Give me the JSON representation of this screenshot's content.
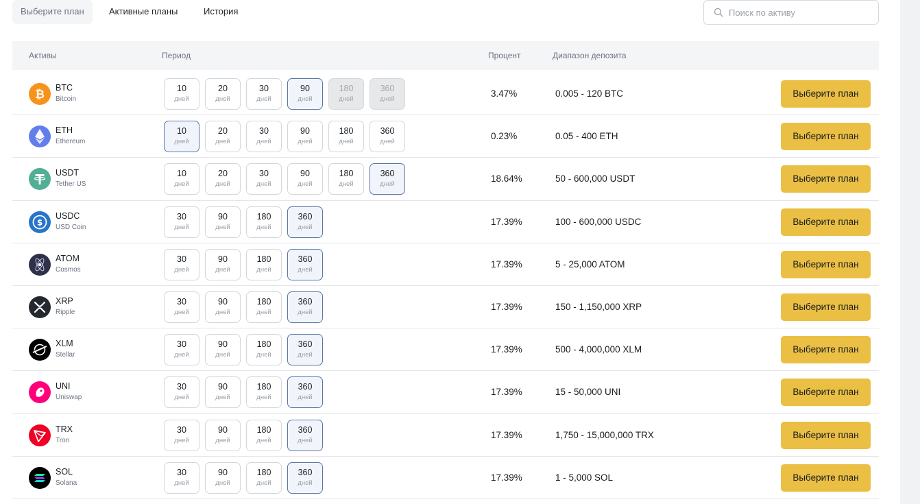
{
  "tabs": [
    {
      "label": "Выберите план",
      "active": true
    },
    {
      "label": "Активные планы",
      "active": false
    },
    {
      "label": "История",
      "active": false
    }
  ],
  "search": {
    "placeholder": "Поиск по активу",
    "value": ""
  },
  "table": {
    "headers": {
      "asset": "Активы",
      "period": "Период",
      "percent": "Процент",
      "range": "Диапазон депозита"
    },
    "unit": "дней",
    "action_label": "Выберите план",
    "rows": [
      {
        "symbol": "BTC",
        "name": "Bitcoin",
        "icon": "bitcoin-icon",
        "color": "#f7931a",
        "periods": [
          {
            "days": "10"
          },
          {
            "days": "20"
          },
          {
            "days": "30"
          },
          {
            "days": "90",
            "selected": true
          },
          {
            "days": "180",
            "disabled": true
          },
          {
            "days": "360",
            "disabled": true
          }
        ],
        "percent": "3.47%",
        "range": "0.005 - 120 BTC"
      },
      {
        "symbol": "ETH",
        "name": "Ethereum",
        "icon": "ethereum-icon",
        "color": "#627eea",
        "periods": [
          {
            "days": "10",
            "selected": true
          },
          {
            "days": "20"
          },
          {
            "days": "30"
          },
          {
            "days": "90"
          },
          {
            "days": "180"
          },
          {
            "days": "360"
          }
        ],
        "percent": "0.23%",
        "range": "0.05 - 400 ETH"
      },
      {
        "symbol": "USDT",
        "name": "Tether US",
        "icon": "tether-icon",
        "color": "#50af95",
        "periods": [
          {
            "days": "10"
          },
          {
            "days": "20"
          },
          {
            "days": "30"
          },
          {
            "days": "90"
          },
          {
            "days": "180"
          },
          {
            "days": "360",
            "selected": true
          }
        ],
        "percent": "18.64%",
        "range": "50 - 600,000 USDT"
      },
      {
        "symbol": "USDC",
        "name": "USD Coin",
        "icon": "usd-coin-icon",
        "color": "#2775ca",
        "periods": [
          {
            "days": "30"
          },
          {
            "days": "90"
          },
          {
            "days": "180"
          },
          {
            "days": "360",
            "selected": true
          }
        ],
        "percent": "17.39%",
        "range": "100 - 600,000 USDC"
      },
      {
        "symbol": "ATOM",
        "name": "Cosmos",
        "icon": "cosmos-icon",
        "color": "#2e3148",
        "periods": [
          {
            "days": "30"
          },
          {
            "days": "90"
          },
          {
            "days": "180"
          },
          {
            "days": "360",
            "selected": true
          }
        ],
        "percent": "17.39%",
        "range": "5 - 25,000 ATOM"
      },
      {
        "symbol": "XRP",
        "name": "Ripple",
        "icon": "ripple-icon",
        "color": "#23292f",
        "periods": [
          {
            "days": "30"
          },
          {
            "days": "90"
          },
          {
            "days": "180"
          },
          {
            "days": "360",
            "selected": true
          }
        ],
        "percent": "17.39%",
        "range": "150 - 1,150,000 XRP"
      },
      {
        "symbol": "XLM",
        "name": "Stellar",
        "icon": "stellar-icon",
        "color": "#000000",
        "periods": [
          {
            "days": "30"
          },
          {
            "days": "90"
          },
          {
            "days": "180"
          },
          {
            "days": "360",
            "selected": true
          }
        ],
        "percent": "17.39%",
        "range": "500 - 4,000,000 XLM"
      },
      {
        "symbol": "UNI",
        "name": "Uniswap",
        "icon": "uniswap-icon",
        "color": "#ff007a",
        "periods": [
          {
            "days": "30"
          },
          {
            "days": "90"
          },
          {
            "days": "180"
          },
          {
            "days": "360",
            "selected": true
          }
        ],
        "percent": "17.39%",
        "range": "15 - 50,000 UNI"
      },
      {
        "symbol": "TRX",
        "name": "Tron",
        "icon": "tron-icon",
        "color": "#ef0027",
        "periods": [
          {
            "days": "30"
          },
          {
            "days": "90"
          },
          {
            "days": "180"
          },
          {
            "days": "360",
            "selected": true
          }
        ],
        "percent": "17.39%",
        "range": "1,750 - 15,000,000 TRX"
      },
      {
        "symbol": "SOL",
        "name": "Solana",
        "icon": "solana-icon",
        "color": "#000000",
        "periods": [
          {
            "days": "30"
          },
          {
            "days": "90"
          },
          {
            "days": "180"
          },
          {
            "days": "360",
            "selected": true
          }
        ],
        "percent": "17.39%",
        "range": "1 - 5,000 SOL"
      }
    ]
  },
  "colors": {
    "accent_button": "#eabf43",
    "selected_border": "#5a78a8",
    "header_bg": "#f4f5f7"
  }
}
